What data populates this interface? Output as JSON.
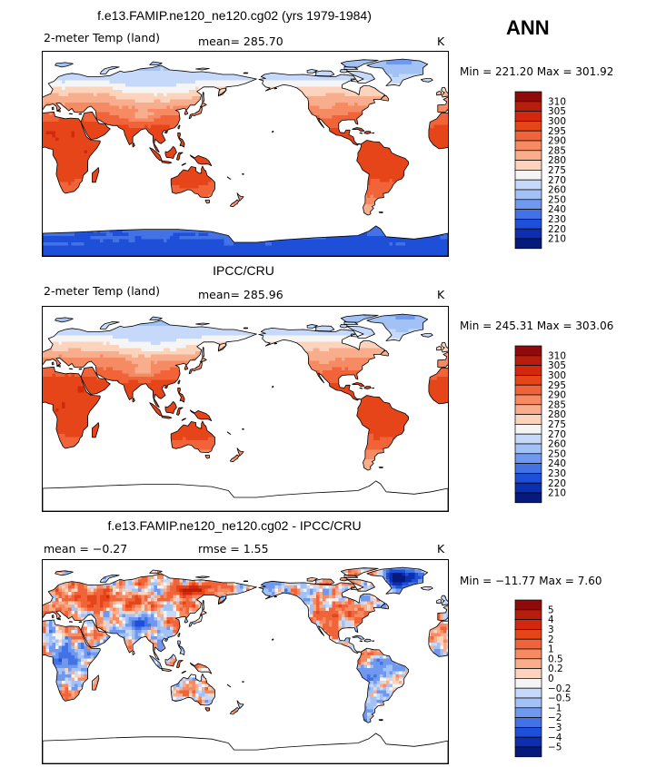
{
  "season": "ANN",
  "colorbars": {
    "temperature": {
      "labels": [
        "310",
        "305",
        "300",
        "295",
        "290",
        "285",
        "280",
        "275",
        "270",
        "260",
        "250",
        "240",
        "230",
        "220",
        "210"
      ],
      "colors": [
        "#8f0b0b",
        "#b81c0c",
        "#d3280d",
        "#e6451a",
        "#f1643a",
        "#f58a63",
        "#f8ad8c",
        "#fcd3bd",
        "#f5f5f5",
        "#c7d9fa",
        "#a2c1f5",
        "#6f98ee",
        "#4272e6",
        "#1e4fd8",
        "#0b2fb0",
        "#061a7c"
      ]
    },
    "difference": {
      "labels": [
        "5",
        "4",
        "3",
        "2",
        "1",
        "0.5",
        "0.2",
        "0",
        "−0.2",
        "−0.5",
        "−1",
        "−2",
        "−3",
        "−4",
        "−5"
      ],
      "colors": [
        "#8f0b0b",
        "#b81c0c",
        "#d3280d",
        "#e6451a",
        "#f1643a",
        "#f58a63",
        "#f8ad8c",
        "#fcd3bd",
        "#f5f5f5",
        "#c7d9fa",
        "#a2c1f5",
        "#6f98ee",
        "#4272e6",
        "#1e4fd8",
        "#0b2fb0",
        "#061a7c"
      ]
    }
  },
  "chart_data": [
    {
      "type": "heatmap",
      "title": "f.e13.FAMIP.ne120_ne120.cg02 (yrs 1979-1984)",
      "variable": "2-meter Temp (land)",
      "mean_label": "mean=",
      "mean": "285.70",
      "units": "K",
      "min_label": "Min =",
      "min": "221.20",
      "max_label": "Max =",
      "max": "301.92",
      "colorbar": "temperature"
    },
    {
      "type": "heatmap",
      "title": "IPCC/CRU",
      "variable": "2-meter Temp (land)",
      "mean_label": "mean=",
      "mean": "285.96",
      "units": "K",
      "min_label": "Min =",
      "min": "245.31",
      "max_label": "Max =",
      "max": "303.06",
      "colorbar": "temperature"
    },
    {
      "type": "heatmap",
      "title": "f.e13.FAMIP.ne120_ne120.cg02 - IPCC/CRU",
      "mean_label": "mean =",
      "mean": "−0.27",
      "rmse_label": "rmse =",
      "rmse": "1.55",
      "units": "K",
      "min_label": "Min =",
      "min": "−11.77",
      "max_label": "Max =",
      "max": "7.60",
      "colorbar": "difference"
    }
  ]
}
